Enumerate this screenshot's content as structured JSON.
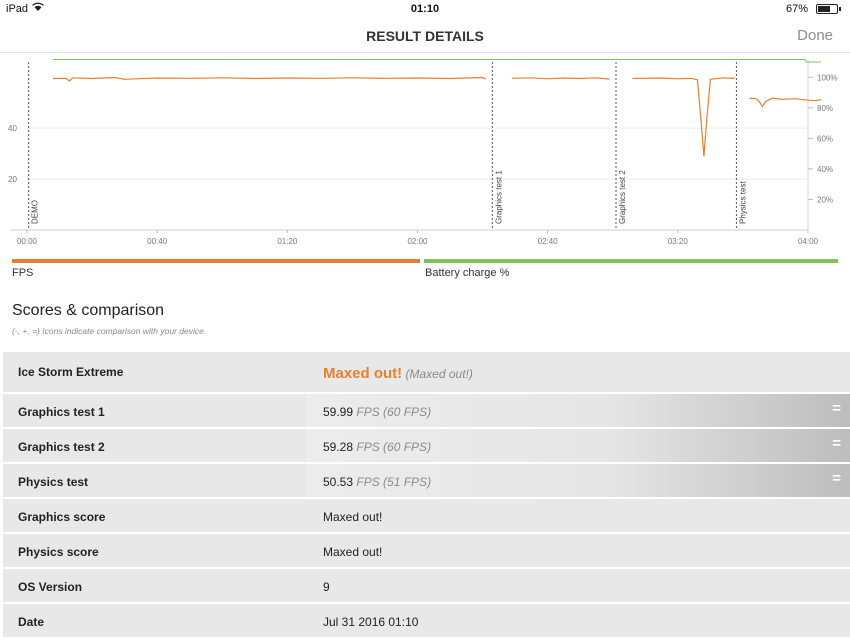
{
  "status_bar": {
    "carrier": "iPad",
    "time": "01:10",
    "battery": "67%",
    "battery_level": 0.67
  },
  "nav": {
    "title": "RESULT DETAILS",
    "done": "Done"
  },
  "chart_data": {
    "type": "line",
    "x_ticks": [
      "00:00",
      "00:40",
      "01:20",
      "02:00",
      "02:40",
      "03:20",
      "04:00"
    ],
    "x_range_seconds": [
      0,
      240
    ],
    "y_left_ticks": [
      20,
      40
    ],
    "y_left_range": [
      0,
      66
    ],
    "y_right_ticks": [
      "100%",
      "80%",
      "60%",
      "40%",
      "20%"
    ],
    "y_right_range": [
      0,
      110
    ],
    "markers": [
      {
        "label": "DEMO",
        "t": 0.5
      },
      {
        "label": "Graphics test 1",
        "t": 143
      },
      {
        "label": "Graphics test 2",
        "t": 181
      },
      {
        "label": "Physics test",
        "t": 218
      }
    ],
    "series": [
      {
        "name": "FPS",
        "color": "#e87f2e",
        "segments": [
          [
            [
              8,
              59.5
            ],
            [
              12,
              59.6
            ],
            [
              13,
              58.5
            ],
            [
              14,
              59.8
            ],
            [
              20,
              59.5
            ],
            [
              27,
              59.9
            ],
            [
              30,
              59.2
            ],
            [
              40,
              59.7
            ],
            [
              50,
              59.6
            ],
            [
              60,
              59.8
            ],
            [
              70,
              59.5
            ],
            [
              80,
              59.7
            ],
            [
              90,
              59.6
            ],
            [
              100,
              59.8
            ],
            [
              110,
              59.6
            ],
            [
              120,
              59.7
            ],
            [
              130,
              59.5
            ],
            [
              140,
              59.9
            ],
            [
              141,
              59.3
            ]
          ],
          [
            [
              149,
              59.6
            ],
            [
              155,
              59.8
            ],
            [
              160,
              59.4
            ],
            [
              165,
              59.7
            ],
            [
              170,
              59.5
            ],
            [
              175,
              59.8
            ],
            [
              179,
              59.3
            ]
          ],
          [
            [
              186,
              59.5
            ],
            [
              195,
              59.7
            ],
            [
              200,
              59.4
            ],
            [
              204,
              59.6
            ],
            [
              206,
              59.0
            ],
            [
              207,
              45.0
            ],
            [
              208,
              29.0
            ],
            [
              209,
              45.0
            ],
            [
              210,
              59.2
            ],
            [
              214,
              59.8
            ],
            [
              217,
              59.5
            ],
            [
              217.5,
              59.9
            ]
          ],
          [
            [
              222,
              51.8
            ],
            [
              224,
              51.6
            ],
            [
              225,
              50.5
            ],
            [
              226,
              48.5
            ],
            [
              227,
              50.5
            ],
            [
              229,
              51.8
            ],
            [
              232,
              51.3
            ],
            [
              236,
              51.6
            ],
            [
              240,
              51.0
            ],
            [
              242,
              50.8
            ],
            [
              244,
              51.2
            ]
          ]
        ]
      },
      {
        "name": "Battery charge %",
        "color": "#86c05a",
        "segments": [
          [
            [
              8,
              67
            ],
            [
              239,
              67
            ],
            [
              239.5,
              66
            ],
            [
              244,
              66
            ]
          ]
        ]
      }
    ]
  },
  "legend": [
    {
      "name": "FPS",
      "color": "#e87f2e"
    },
    {
      "name": "Battery charge %",
      "color": "#86c05a"
    }
  ],
  "scores": {
    "heading": "Scores & comparison",
    "subtitle": "(-, +, =) Icons indicate comparison with your device.",
    "rows": [
      {
        "key": "Ice Storm Extreme",
        "value": "Maxed out!",
        "paren": "(Maxed out!)"
      },
      {
        "key": "Graphics test 1",
        "value": "59.99",
        "unit": "FPS (60 FPS)",
        "cmp": "="
      },
      {
        "key": "Graphics test 2",
        "value": "59.28",
        "unit": "FPS (60 FPS)",
        "cmp": "="
      },
      {
        "key": "Physics test",
        "value": "50.53",
        "unit": "FPS (51 FPS)",
        "cmp": "="
      },
      {
        "key": "Graphics score",
        "value": "Maxed out!"
      },
      {
        "key": "Physics score",
        "value": "Maxed out!"
      },
      {
        "key": "OS Version",
        "value": "9"
      },
      {
        "key": "Date",
        "value": "Jul 31 2016 01:10"
      }
    ]
  }
}
